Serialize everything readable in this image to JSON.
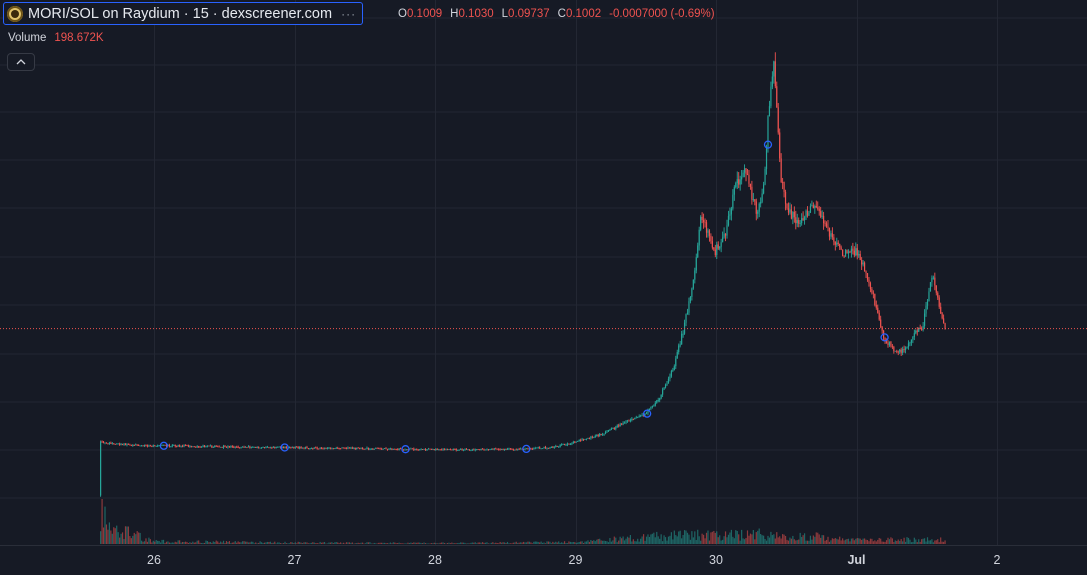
{
  "header": {
    "symbol_title": "MORI/SOL on Raydium · 15 · dexscreener.com",
    "more_icon": "···",
    "ohlc": {
      "open_label": "O",
      "open": "0.1009",
      "high_label": "H",
      "high": "0.1030",
      "low_label": "L",
      "low": "0.09737",
      "close_label": "C",
      "close": "0.1002",
      "change": "-0.0007000 (-0.69%)"
    },
    "volume_label": "Volume",
    "volume_value": "198.672K",
    "collapse_icon": "chevron-up-icon"
  },
  "colors": {
    "background": "#161a25",
    "grid": "#232733",
    "up": "#26a69a",
    "down": "#ef5350",
    "marker": "#2962ff",
    "price_line": "#ef5350"
  },
  "chart_data": {
    "type": "candlestick",
    "interval": "15",
    "x_tick_labels": [
      "26",
      "27",
      "28",
      "29",
      "30",
      "Jul",
      "2"
    ],
    "x_tick_days": [
      0,
      1,
      2,
      3,
      4,
      5,
      6
    ],
    "current_close": 0.1002,
    "y_axis": "hidden",
    "grid": true,
    "price_path_days": [
      -0.38,
      -0.37,
      -0.35,
      -0.3,
      -0.2,
      -0.1,
      0.2,
      0.5,
      1.0,
      1.3,
      1.5,
      1.9,
      2.2,
      2.6,
      2.85,
      3.05,
      3.2,
      3.35,
      3.5,
      3.6,
      3.7,
      3.78,
      3.85,
      3.9,
      3.95,
      4.0,
      4.08,
      4.15,
      4.22,
      4.3,
      4.35,
      4.38,
      4.42,
      4.47,
      4.52,
      4.6,
      4.7,
      4.78,
      4.85,
      4.92,
      5.0,
      5.05,
      5.12,
      5.2,
      5.28,
      5.35,
      5.4,
      5.48,
      5.55,
      5.6,
      5.64
    ],
    "price_path_values": [
      0.0015,
      0.034,
      0.033,
      0.0322,
      0.0317,
      0.031,
      0.0308,
      0.0303,
      0.0298,
      0.0295,
      0.0293,
      0.0287,
      0.0287,
      0.0288,
      0.03,
      0.034,
      0.038,
      0.044,
      0.049,
      0.058,
      0.075,
      0.1,
      0.128,
      0.165,
      0.158,
      0.145,
      0.158,
      0.185,
      0.195,
      0.168,
      0.183,
      0.222,
      0.257,
      0.192,
      0.17,
      0.162,
      0.173,
      0.165,
      0.15,
      0.145,
      0.146,
      0.14,
      0.123,
      0.095,
      0.088,
      0.087,
      0.095,
      0.101,
      0.133,
      0.113,
      0.1002
    ],
    "circle_markers_days": [
      0.07,
      0.93,
      1.79,
      2.65,
      3.51,
      4.37,
      5.2
    ],
    "volume_path_days": [
      -0.38,
      -0.37,
      -0.3,
      0,
      1,
      2,
      3,
      3.5,
      3.8,
      4.0,
      4.3,
      4.5,
      4.7,
      5.0,
      5.3,
      5.64
    ],
    "volume_path_values": [
      20,
      100,
      35,
      6,
      3,
      2,
      4,
      15,
      20,
      18,
      22,
      14,
      16,
      10,
      10,
      9
    ]
  }
}
